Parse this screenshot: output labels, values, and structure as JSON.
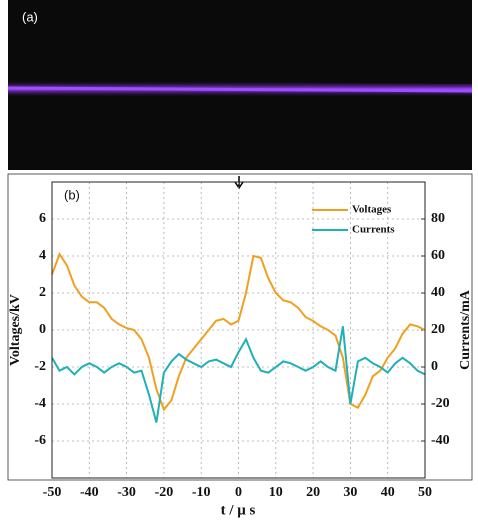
{
  "panel_a_label": "(a)",
  "chart_data": {
    "type": "line",
    "panel_label": "(b)",
    "x_label": "t / μ s",
    "y_label": "Voltages/kV",
    "y2_label": "Currents/mA",
    "x": [
      -50,
      -48,
      -46,
      -44,
      -42,
      -40,
      -38,
      -36,
      -34,
      -32,
      -30,
      -28,
      -26,
      -24,
      -22,
      -20,
      -18,
      -16,
      -14,
      -12,
      -10,
      -8,
      -6,
      -4,
      -2,
      0,
      2,
      4,
      6,
      8,
      10,
      12,
      14,
      16,
      18,
      20,
      22,
      24,
      26,
      28,
      30,
      32,
      34,
      36,
      38,
      40,
      42,
      44,
      46,
      48,
      50
    ],
    "series": [
      {
        "name": "Voltages",
        "color": "#f0a020",
        "values": [
          3.0,
          4.1,
          3.5,
          2.4,
          1.8,
          1.5,
          1.5,
          1.2,
          0.6,
          0.3,
          0.1,
          0.0,
          -0.5,
          -1.5,
          -3.2,
          -4.3,
          -3.8,
          -2.5,
          -1.5,
          -1.0,
          -0.5,
          0.0,
          0.5,
          0.6,
          0.3,
          0.5,
          2.0,
          4.0,
          3.9,
          2.8,
          2.0,
          1.6,
          1.5,
          1.2,
          0.7,
          0.5,
          0.2,
          0.0,
          -0.3,
          -1.5,
          -4.0,
          -4.2,
          -3.5,
          -2.5,
          -2.2,
          -1.5,
          -1.0,
          -0.2,
          0.3,
          0.2,
          0.0
        ]
      },
      {
        "name": "Currents",
        "color": "#20b0b8",
        "axis": "y2",
        "values": [
          5,
          -2,
          0,
          -4,
          0,
          2,
          0,
          -3,
          0,
          2,
          0,
          -3,
          -2,
          -15,
          -30,
          -3,
          3,
          7,
          4,
          2,
          0,
          3,
          4,
          2,
          0,
          8,
          15,
          5,
          -2,
          -3,
          0,
          3,
          2,
          0,
          -2,
          0,
          3,
          0,
          -2,
          22,
          -20,
          3,
          5,
          2,
          0,
          -3,
          2,
          5,
          2,
          -2,
          -4
        ]
      }
    ],
    "xlim": [
      -50,
      50
    ],
    "xticks": [
      -50,
      -40,
      -30,
      -20,
      -10,
      0,
      10,
      20,
      30,
      40,
      50
    ],
    "ylim": [
      -8,
      8
    ],
    "yticks": [
      -6,
      -4,
      -2,
      0,
      2,
      4,
      6
    ],
    "y2lim": [
      -60,
      100
    ],
    "y2ticks": [
      -40,
      -20,
      0,
      20,
      40,
      60,
      80
    ],
    "grid": true,
    "legend": "upper right"
  }
}
